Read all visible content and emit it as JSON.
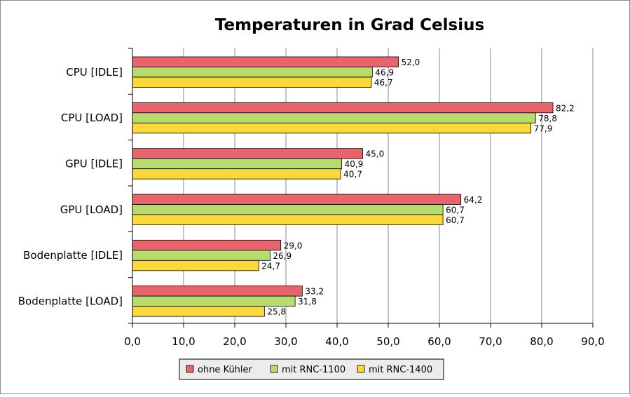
{
  "chart_data": {
    "type": "bar",
    "orientation": "horizontal",
    "title": "Temperaturen in Grad Celsius",
    "xlabel": "",
    "ylabel": "",
    "categories": [
      "CPU [IDLE]",
      "CPU [LOAD]",
      "GPU [IDLE]",
      "GPU [LOAD]",
      "Bodenplatte [IDLE]",
      "Bodenplatte [LOAD]"
    ],
    "series": [
      {
        "name": "ohne Kühler",
        "color": "#e8636b",
        "values": [
          52.0,
          82.2,
          45.0,
          64.2,
          29.0,
          33.2
        ],
        "labels": [
          "52,0",
          "82,2",
          "45,0",
          "64,2",
          "29,0",
          "33,2"
        ]
      },
      {
        "name": "mit RNC-1100",
        "color": "#b6dc6c",
        "values": [
          46.9,
          78.8,
          40.9,
          60.7,
          26.9,
          31.8
        ],
        "labels": [
          "46,9",
          "78,8",
          "40,9",
          "60,7",
          "26,9",
          "31,8"
        ]
      },
      {
        "name": "mit RNC-1400",
        "color": "#fbd93a",
        "values": [
          46.7,
          77.9,
          40.7,
          60.7,
          24.7,
          25.8
        ],
        "labels": [
          "46,7",
          "77,9",
          "40,7",
          "60,7",
          "24,7",
          "25,8"
        ]
      }
    ],
    "xlim": [
      0,
      90
    ],
    "xticks": [
      0,
      10,
      20,
      30,
      40,
      50,
      60,
      70,
      80,
      90
    ],
    "xtick_labels": [
      "0,0",
      "10,0",
      "20,0",
      "30,0",
      "40,0",
      "50,0",
      "60,0",
      "70,0",
      "80,0",
      "90,0"
    ],
    "grid": true,
    "legend_position": "bottom"
  }
}
